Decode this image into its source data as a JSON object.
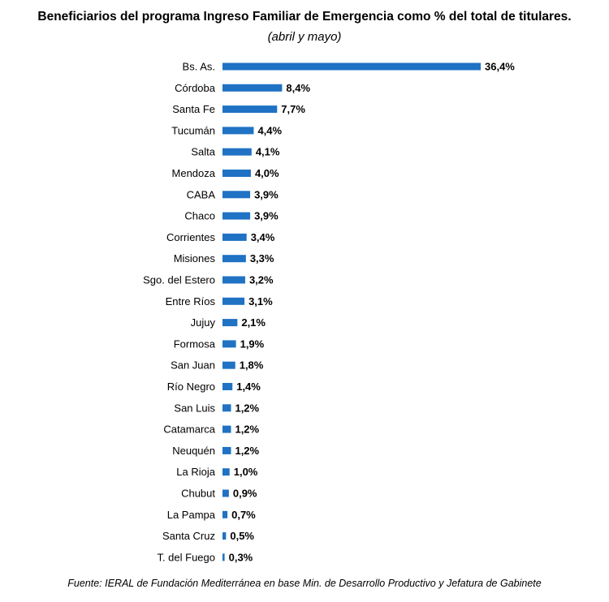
{
  "chart_data": {
    "type": "bar",
    "orientation": "horizontal",
    "title": "Beneficiarios del programa Ingreso Familiar de Emergencia como % del total de titulares.",
    "subtitle": "(abril y mayo)",
    "categories": [
      "Bs. As.",
      "Córdoba",
      "Santa Fe",
      "Tucumán",
      "Salta",
      "Mendoza",
      "CABA",
      "Chaco",
      "Corrientes",
      "Misiones",
      "Sgo. del Estero",
      "Entre Ríos",
      "Jujuy",
      "Formosa",
      "San Juan",
      "Río Negro",
      "San Luis",
      "Catamarca",
      "Neuquén",
      "La Rioja",
      "Chubut",
      "La Pampa",
      "Santa Cruz",
      "T. del Fuego"
    ],
    "values": [
      36.4,
      8.4,
      7.7,
      4.4,
      4.1,
      4.0,
      3.9,
      3.9,
      3.4,
      3.3,
      3.2,
      3.1,
      2.1,
      1.9,
      1.8,
      1.4,
      1.2,
      1.2,
      1.2,
      1.0,
      0.9,
      0.7,
      0.5,
      0.3
    ],
    "value_labels": [
      "36,4%",
      "8,4%",
      "7,7%",
      "4,4%",
      "4,1%",
      "4,0%",
      "3,9%",
      "3,9%",
      "3,4%",
      "3,3%",
      "3,2%",
      "3,1%",
      "2,1%",
      "1,9%",
      "1,8%",
      "1,4%",
      "1,2%",
      "1,2%",
      "1,2%",
      "1,0%",
      "0,9%",
      "0,7%",
      "0,5%",
      "0,3%"
    ],
    "xlim": [
      0,
      36.4
    ],
    "bar_color": "#1f72c4",
    "grid": false,
    "legend": false
  },
  "source": "Fuente: IERAL de Fundación Mediterránea en base Min. de Desarrollo Productivo y Jefatura de Gabinete"
}
